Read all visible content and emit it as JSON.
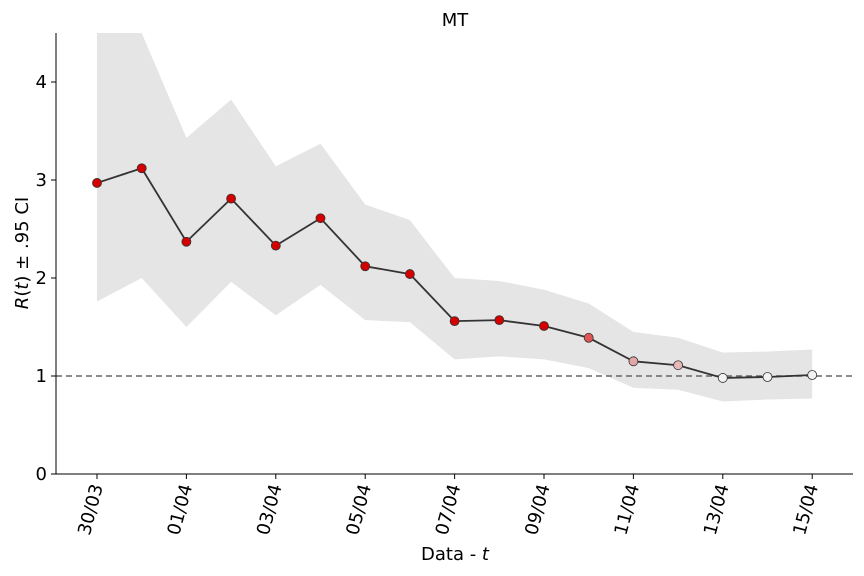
{
  "chart_data": {
    "type": "line",
    "title": "MT",
    "xlabel": "Data - t",
    "ylabel": "R(t) ± .95 CI",
    "ylim": [
      0,
      4.5
    ],
    "y_ticks": [
      "0",
      "1",
      "2",
      "3",
      "4"
    ],
    "x_tick_labels": [
      "30/03",
      "01/04",
      "03/04",
      "05/04",
      "07/04",
      "09/04",
      "11/04",
      "13/04",
      "15/04"
    ],
    "x": [
      "30/03",
      "31/03",
      "01/04",
      "02/04",
      "03/04",
      "04/04",
      "05/04",
      "06/04",
      "07/04",
      "08/04",
      "09/04",
      "10/04",
      "11/04",
      "12/04",
      "13/04",
      "14/04",
      "15/04"
    ],
    "series": [
      {
        "values": [
          2.97,
          3.12,
          2.37,
          2.81,
          2.33,
          2.61,
          2.12,
          2.04,
          1.56,
          1.57,
          1.51,
          1.39,
          1.15,
          1.11,
          0.98,
          0.99,
          1.01
        ],
        "ci_lower": [
          1.76,
          2.0,
          1.5,
          1.96,
          1.62,
          1.93,
          1.57,
          1.55,
          1.17,
          1.2,
          1.17,
          1.08,
          0.88,
          0.86,
          0.74,
          0.76,
          0.77
        ],
        "ci_upper": [
          4.5,
          4.5,
          3.43,
          3.82,
          3.14,
          3.37,
          2.75,
          2.59,
          2.0,
          1.97,
          1.88,
          1.74,
          1.45,
          1.39,
          1.24,
          1.25,
          1.27
        ],
        "point_colors": [
          "#d40000",
          "#d40000",
          "#d40000",
          "#d40000",
          "#d40000",
          "#d40000",
          "#d40000",
          "#d40000",
          "#d40000",
          "#d40000",
          "#d40000",
          "#e05555",
          "#e3a5a5",
          "#e8b8b8",
          "#f2f2f2",
          "#f2f2f2",
          "#f2f2f2"
        ]
      }
    ],
    "reference_line": 1,
    "colors": {
      "line": "#333333",
      "ci_band": "#e5e5e5",
      "reference": "#666666"
    }
  }
}
